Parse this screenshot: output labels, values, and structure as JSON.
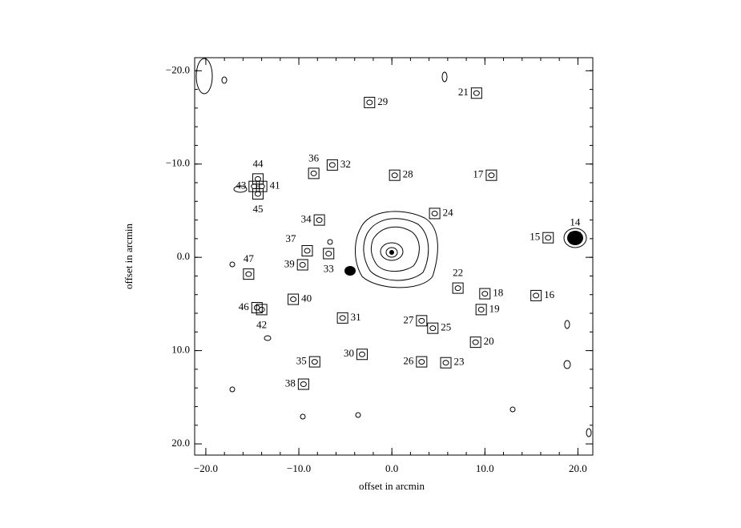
{
  "chart_data": {
    "type": "scatter",
    "xlabel": "offset in arcmin",
    "ylabel": "offset in arcmin",
    "xlim": [
      -21.2,
      21.6
    ],
    "ylim": [
      -21.4,
      21.2
    ],
    "y_inverted": true,
    "xticks": [
      {
        "value": -20,
        "label": "−20.0"
      },
      {
        "value": -10,
        "label": "−10.0"
      },
      {
        "value": 0,
        "label": "0.0"
      },
      {
        "value": 10,
        "label": "10.0"
      },
      {
        "value": 20,
        "label": "20.0"
      }
    ],
    "yticks": [
      {
        "value": -20,
        "label": "−20.0"
      },
      {
        "value": -10,
        "label": "−10.0"
      },
      {
        "value": 0,
        "label": "0.0"
      },
      {
        "value": 10,
        "label": "10.0"
      },
      {
        "value": 20,
        "label": "20.0"
      }
    ],
    "color": "#000000",
    "labels": [
      "29",
      "21",
      "36",
      "32",
      "28",
      "17",
      "44",
      "43",
      "41",
      "45",
      "24",
      "34",
      "14",
      "15",
      "37",
      "33",
      "39",
      "47",
      "22",
      "18",
      "16",
      "40",
      "46",
      "42",
      "19",
      "31",
      "27",
      "25",
      "20",
      "30",
      "35",
      "26",
      "23",
      "38"
    ],
    "x": [
      -2.4,
      9.1,
      -8.4,
      -6.4,
      0.3,
      10.7,
      -14.4,
      -14.8,
      -14.0,
      -14.4,
      4.6,
      -7.8,
      19.7,
      16.8,
      -9.1,
      -6.8,
      -9.6,
      -15.4,
      7.1,
      10.0,
      15.5,
      -10.6,
      -14.5,
      -14.0,
      9.6,
      -5.3,
      3.2,
      4.4,
      9.0,
      -3.2,
      -8.3,
      3.2,
      5.8,
      -9.5
    ],
    "values": [
      -16.6,
      -17.6,
      -9.0,
      -9.9,
      -8.8,
      -8.8,
      -8.4,
      -7.6,
      -7.6,
      -6.8,
      -4.7,
      -4.0,
      -2.1,
      -2.1,
      -0.7,
      -0.4,
      0.8,
      1.8,
      3.3,
      3.9,
      4.1,
      4.5,
      5.4,
      5.6,
      5.6,
      6.5,
      6.8,
      7.6,
      9.1,
      10.4,
      11.2,
      11.2,
      11.3,
      13.6
    ]
  }
}
